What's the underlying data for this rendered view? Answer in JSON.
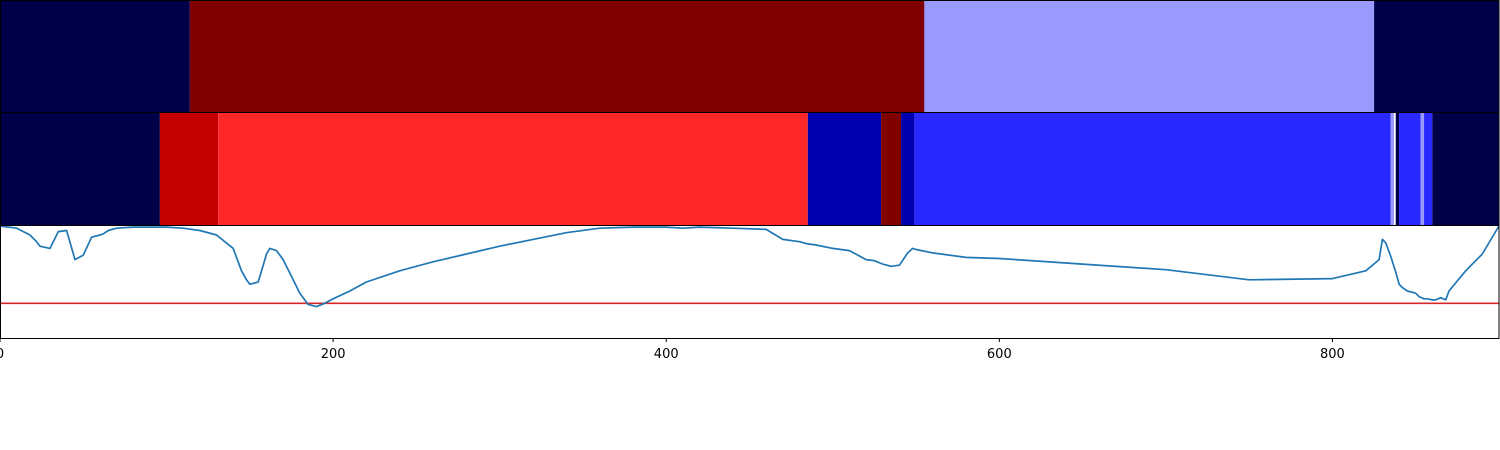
{
  "chart_data": {
    "type": "segmentation-plot",
    "xlim": [
      0,
      900
    ],
    "xticks": [
      0,
      200,
      400,
      600,
      800
    ],
    "xtick_labels": [
      "0",
      "200",
      "400",
      "600",
      "800"
    ],
    "segment_tracks": [
      {
        "segments": [
          {
            "start": 0,
            "end": 114,
            "color": "#000048"
          },
          {
            "start": 114,
            "end": 555,
            "color": "#800000"
          },
          {
            "start": 555,
            "end": 825,
            "color": "#9999ff"
          },
          {
            "start": 825,
            "end": 900,
            "color": "#000048"
          }
        ]
      },
      {
        "segments": [
          {
            "start": 0,
            "end": 96,
            "color": "#000048"
          },
          {
            "start": 96,
            "end": 131,
            "color": "#c40000"
          },
          {
            "start": 131,
            "end": 485,
            "color": "#ff2828"
          },
          {
            "start": 485,
            "end": 529,
            "color": "#0000b0"
          },
          {
            "start": 529,
            "end": 541,
            "color": "#800000"
          },
          {
            "start": 541,
            "end": 549,
            "color": "#0000b0"
          },
          {
            "start": 549,
            "end": 835,
            "color": "#2828ff"
          },
          {
            "start": 835,
            "end": 837,
            "color": "#9999ff"
          },
          {
            "start": 837,
            "end": 838,
            "color": "#ffffff"
          },
          {
            "start": 838,
            "end": 840,
            "color": "#000048"
          },
          {
            "start": 840,
            "end": 853,
            "color": "#2828ff"
          },
          {
            "start": 853,
            "end": 855,
            "color": "#9999ff"
          },
          {
            "start": 855,
            "end": 860,
            "color": "#2828ff"
          },
          {
            "start": 860,
            "end": 900,
            "color": "#000048"
          }
        ]
      }
    ],
    "line_panel": {
      "ylim": [
        0,
        1
      ],
      "series_color": "#1f77b4",
      "threshold": 0.31,
      "threshold_color": "#d62728",
      "x": [
        0,
        10,
        18,
        22,
        24,
        30,
        35,
        40,
        45,
        50,
        55,
        60,
        62,
        65,
        70,
        80,
        90,
        100,
        110,
        120,
        130,
        140,
        145,
        148,
        150,
        155,
        158,
        160,
        162,
        166,
        170,
        175,
        180,
        185,
        190,
        195,
        200,
        210,
        220,
        240,
        260,
        280,
        300,
        320,
        340,
        360,
        380,
        400,
        410,
        420,
        440,
        460,
        470,
        480,
        485,
        490,
        500,
        510,
        515,
        520,
        525,
        530,
        535,
        540,
        545,
        548,
        550,
        560,
        580,
        600,
        650,
        700,
        750,
        800,
        820,
        828,
        830,
        832,
        835,
        838,
        840,
        842,
        845,
        850,
        852,
        855,
        857,
        860,
        862,
        865,
        868,
        870,
        880,
        890,
        900
      ],
      "y": [
        1.0,
        0.98,
        0.92,
        0.86,
        0.82,
        0.8,
        0.95,
        0.96,
        0.7,
        0.74,
        0.9,
        0.92,
        0.93,
        0.96,
        0.98,
        0.99,
        0.99,
        0.99,
        0.98,
        0.96,
        0.92,
        0.8,
        0.6,
        0.52,
        0.48,
        0.5,
        0.65,
        0.75,
        0.8,
        0.78,
        0.7,
        0.55,
        0.4,
        0.3,
        0.28,
        0.31,
        0.35,
        0.42,
        0.5,
        0.6,
        0.68,
        0.75,
        0.82,
        0.88,
        0.94,
        0.98,
        0.99,
        0.99,
        0.98,
        0.99,
        0.98,
        0.97,
        0.88,
        0.86,
        0.84,
        0.83,
        0.8,
        0.78,
        0.74,
        0.7,
        0.69,
        0.66,
        0.64,
        0.65,
        0.76,
        0.8,
        0.79,
        0.76,
        0.72,
        0.71,
        0.66,
        0.61,
        0.52,
        0.53,
        0.6,
        0.7,
        0.88,
        0.85,
        0.73,
        0.59,
        0.48,
        0.45,
        0.42,
        0.4,
        0.37,
        0.35,
        0.35,
        0.34,
        0.34,
        0.36,
        0.34,
        0.42,
        0.6,
        0.75,
        1.0
      ]
    }
  }
}
